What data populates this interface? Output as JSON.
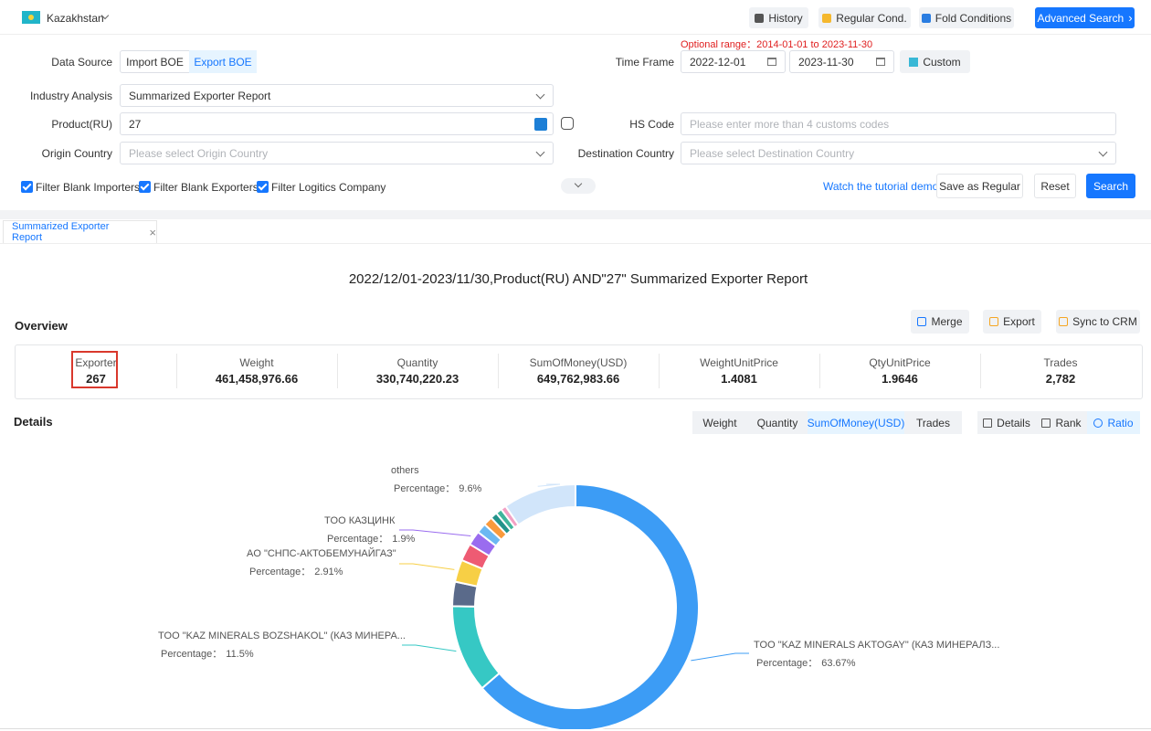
{
  "header": {
    "country": "Kazakhstan",
    "buttons": [
      "History",
      "Regular Cond.",
      "Fold Conditions",
      "Advanced Search"
    ]
  },
  "form": {
    "optional_range": "Optional range：2014-01-01 to 2023-11-30",
    "data_source_label": "Data Source",
    "data_source_options": [
      "Import BOE",
      "Export BOE"
    ],
    "time_frame_label": "Time Frame",
    "start_date": "2022-12-01",
    "end_date": "2023-11-30",
    "custom": "Custom",
    "industry_label": "Industry Analysis",
    "industry_value": "Summarized Exporter Report",
    "product_label": "Product(RU)",
    "product_value": "27",
    "hs_label": "HS Code",
    "hs_placeholder": "Please enter more than 4 customs codes",
    "origin_label": "Origin Country",
    "origin_placeholder": "Please select Origin Country",
    "destination_label": "Destination Country",
    "destination_placeholder": "Please select Destination Country",
    "filters": [
      "Filter Blank Importers",
      "Filter Blank Exporters",
      "Filter Logitics Company"
    ],
    "tutorial": "Watch the tutorial demo",
    "actions": [
      "Save as Regular",
      "Reset",
      "Search"
    ]
  },
  "tab": "Summarized Exporter Report",
  "report_title": "2022/12/01-2023/11/30,Product(RU) AND\"27\" Summarized Exporter Report",
  "overview": {
    "title": "Overview",
    "buttons": [
      "Merge",
      "Export",
      "Sync to CRM"
    ],
    "stats": [
      {
        "label": "Exporter",
        "value": "267"
      },
      {
        "label": "Weight",
        "value": "461,458,976.66"
      },
      {
        "label": "Quantity",
        "value": "330,740,220.23"
      },
      {
        "label": "SumOfMoney(USD)",
        "value": "649,762,983.66"
      },
      {
        "label": "WeightUnitPrice",
        "value": "1.4081"
      },
      {
        "label": "QtyUnitPrice",
        "value": "1.9646"
      },
      {
        "label": "Trades",
        "value": "2,782"
      }
    ]
  },
  "details": {
    "title": "Details",
    "metric_tabs": [
      "Weight",
      "Quantity",
      "SumOfMoney(USD)",
      "Trades"
    ],
    "view_tabs": [
      "Details",
      "Rank",
      "Ratio"
    ]
  },
  "chart_data": {
    "type": "pie",
    "percentage_label": "Percentage：",
    "categories": [
      "TOO \"KAZ MINERALS AKTOGAY\" (КАЗ МИНЕРАЛЗ...",
      "TOO \"KAZ MINERALS BOZSHAKOL\" (КАЗ МИНЕРА...",
      null,
      "AO \"СНПС-АКТОБЕМУНАЙГАЗ\"",
      null,
      "TOO КАЗЦИНК",
      null,
      null,
      null,
      null,
      null,
      "others"
    ],
    "values": [
      63.67,
      11.5,
      3.2,
      2.91,
      2.3,
      1.9,
      1.3,
      1.2,
      0.9,
      0.8,
      0.7,
      9.6
    ],
    "value_labels": [
      "63.67%",
      "11.5%",
      null,
      "2.91%",
      null,
      "1.9%",
      null,
      null,
      null,
      null,
      null,
      "9.6%"
    ],
    "colors": [
      "#3c9cf5",
      "#36c8c4",
      "#5a6a8a",
      "#f7cf45",
      "#ee5b73",
      "#9a6cef",
      "#6cb8f2",
      "#fa9a3c",
      "#23938a",
      "#3fb59c",
      "#f2a0c4",
      "#d1e5fa"
    ]
  }
}
